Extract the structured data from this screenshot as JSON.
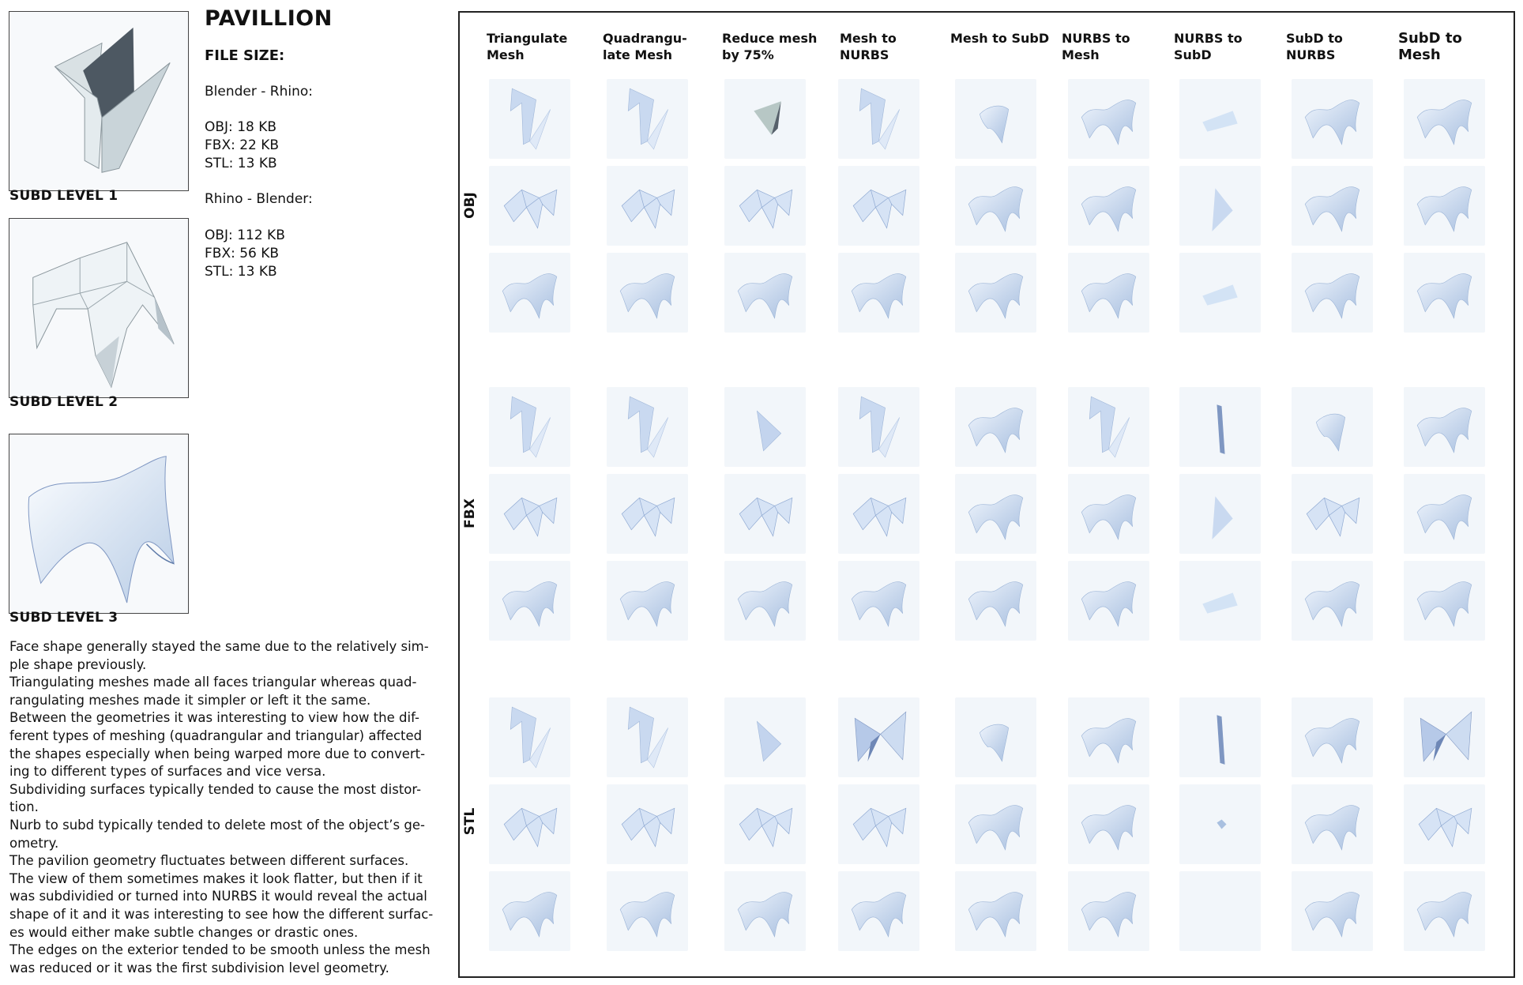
{
  "title": "PAVILLION",
  "subd_levels": [
    {
      "label": "SUBD LEVEL 1",
      "shape": "planes"
    },
    {
      "label": "SUBD LEVEL 2",
      "shape": "faceted"
    },
    {
      "label": "SUBD LEVEL 3",
      "shape": "smooth"
    }
  ],
  "file_size": {
    "heading": "FILE SIZE:",
    "blender_to_rhino": {
      "label": "Blender - Rhino:",
      "lines": [
        "OBJ: 18 KB",
        "FBX: 22 KB",
        "STL: 13 KB"
      ]
    },
    "rhino_to_blender": {
      "label": "Rhino - Blender:",
      "lines": [
        "OBJ: 112 KB",
        "FBX: 56 KB",
        "STL: 13 KB"
      ]
    }
  },
  "notes": [
    "Face shape generally stayed the same due to the relatively sim-ple shape previously.",
    "Triangulating meshes made all faces triangular whereas quad-rangulating meshes made it simpler or left it the same.",
    "Between the geometries it was interesting to view how the dif-ferent types of meshing (quadrangular and triangular) affected the shapes especially when being warped more due to convert-ing to different types of surfaces and vice versa.",
    "Subdividing surfaces typically tended to cause the most distor-tion.",
    "Nurb to subd typically tended to delete most of the object’s ge-ometry.",
    "The pavilion geometry fluctuates between different surfaces. The view of them sometimes makes it look flatter, but then if it was subdividied or turned into NURBS it would reveal the actual shape of it and it was interesting to see how the different surfac-es would either make subtle changes or drastic ones.",
    "The edges on the exterior tended to be smooth unless the mesh was reduced or it was the first subdivision level geometry."
  ],
  "grid": {
    "columns": [
      "Triangulate\nMesh",
      "Quadrangu-\nlate Mesh",
      "Reduce mesh\nby 75%",
      "Mesh to\nNURBS",
      "Mesh to SubD",
      "NURBS to\nMesh",
      "NURBS to\nSubD",
      "SubD to\nNURBS",
      "SubD to\nMesh"
    ],
    "row_groups": [
      {
        "label": "OBJ",
        "rows": [
          [
            "planes",
            "planes",
            "tri-dark",
            "planes",
            "smooth-small",
            "smooth",
            "flat",
            "smooth",
            "smooth"
          ],
          [
            "faceted",
            "faceted",
            "faceted",
            "faceted",
            "smooth",
            "smooth",
            "sliver",
            "smooth",
            "smooth"
          ],
          [
            "smooth",
            "smooth",
            "smooth",
            "smooth",
            "smooth",
            "smooth",
            "flat",
            "smooth",
            "smooth"
          ]
        ]
      },
      {
        "label": "FBX",
        "rows": [
          [
            "planes",
            "planes",
            "tri",
            "planes",
            "smooth",
            "planes",
            "line",
            "smooth-small",
            "smooth"
          ],
          [
            "faceted",
            "faceted",
            "faceted",
            "faceted",
            "smooth",
            "smooth",
            "sliver",
            "faceted",
            "smooth"
          ],
          [
            "smooth",
            "smooth",
            "smooth",
            "smooth",
            "smooth",
            "smooth",
            "flat",
            "smooth",
            "smooth"
          ]
        ]
      },
      {
        "label": "STL",
        "rows": [
          [
            "planes",
            "planes",
            "tri",
            "bowtie",
            "smooth-small",
            "smooth",
            "line",
            "smooth",
            "bowtie"
          ],
          [
            "faceted",
            "faceted",
            "faceted",
            "faceted",
            "smooth",
            "smooth",
            "dot",
            "smooth",
            "faceted"
          ],
          [
            "smooth",
            "smooth",
            "smooth",
            "smooth",
            "smooth",
            "smooth",
            "empty",
            "smooth",
            "smooth"
          ]
        ]
      }
    ]
  }
}
